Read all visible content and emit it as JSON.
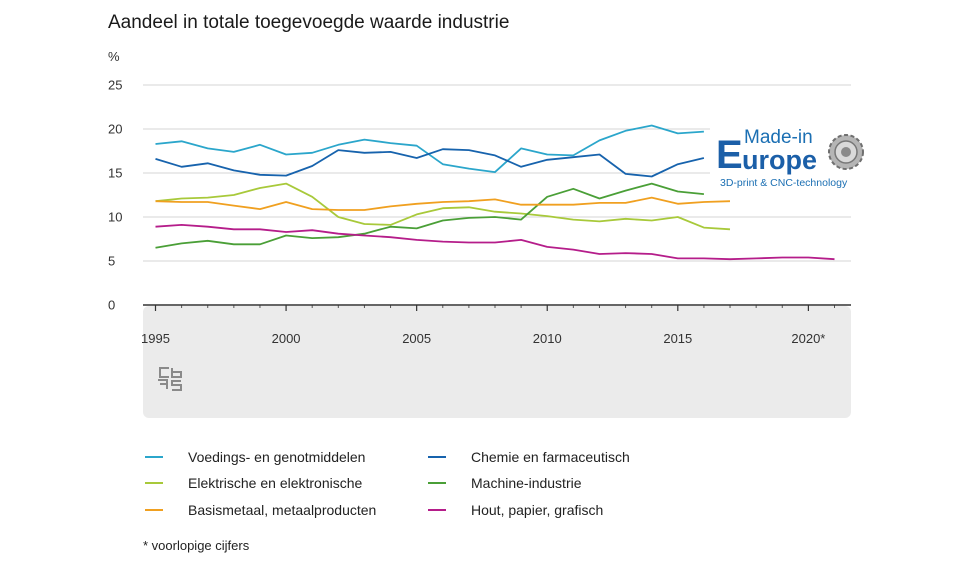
{
  "chart_data": {
    "type": "line",
    "title": "Aandeel in totale toegevoegde waarde industrie",
    "ylabel": "%",
    "ylim": [
      0,
      25
    ],
    "yticks": [
      "0",
      "5",
      "10",
      "15",
      "20",
      "25"
    ],
    "xlim": [
      1995,
      2021
    ],
    "xticks": [
      {
        "value": 1995,
        "label": "1995"
      },
      {
        "value": 2000,
        "label": "2000"
      },
      {
        "value": 2005,
        "label": "2005"
      },
      {
        "value": 2010,
        "label": "2010"
      },
      {
        "value": 2015,
        "label": "2015"
      },
      {
        "value": 2020,
        "label": "2020*"
      }
    ],
    "grid": true,
    "legend_position": "bottom",
    "series": [
      {
        "name": "Voedings- en genotmiddelen",
        "color": "#2ba6cb",
        "x": [
          1995,
          1996,
          1997,
          1998,
          1999,
          2000,
          2001,
          2002,
          2003,
          2004,
          2005,
          2006,
          2007,
          2008,
          2009,
          2010,
          2011,
          2012,
          2013,
          2014,
          2015,
          2016
        ],
        "values": [
          18.3,
          18.6,
          17.8,
          17.4,
          18.2,
          17.1,
          17.3,
          18.2,
          18.8,
          18.4,
          18.1,
          16.0,
          15.5,
          15.1,
          17.8,
          17.1,
          17.0,
          18.7,
          19.8,
          20.4,
          19.5,
          19.7
        ]
      },
      {
        "name": "Chemie en farmaceutisch",
        "color": "#1763ad",
        "x": [
          1995,
          1996,
          1997,
          1998,
          1999,
          2000,
          2001,
          2002,
          2003,
          2004,
          2005,
          2006,
          2007,
          2008,
          2009,
          2010,
          2011,
          2012,
          2013,
          2014,
          2015,
          2016
        ],
        "values": [
          16.6,
          15.7,
          16.1,
          15.3,
          14.8,
          14.7,
          15.8,
          17.6,
          17.3,
          17.4,
          16.7,
          17.7,
          17.6,
          17.0,
          15.7,
          16.5,
          16.8,
          17.1,
          14.9,
          14.6,
          16.0,
          16.7
        ]
      },
      {
        "name": "Elektrische en elektronische",
        "color": "#a8c93a",
        "x": [
          1995,
          1996,
          1997,
          1998,
          1999,
          2000,
          2001,
          2002,
          2003,
          2004,
          2005,
          2006,
          2007,
          2008,
          2009,
          2010,
          2011,
          2012,
          2013,
          2014,
          2015,
          2016,
          2017
        ],
        "values": [
          11.8,
          12.1,
          12.2,
          12.5,
          13.3,
          13.8,
          12.3,
          10.0,
          9.2,
          9.1,
          10.3,
          11.0,
          11.1,
          10.6,
          10.4,
          10.1,
          9.7,
          9.5,
          9.8,
          9.6,
          10.0,
          8.8,
          8.6
        ]
      },
      {
        "name": "Machine-industrie",
        "color": "#4a9f37",
        "x": [
          1995,
          1996,
          1997,
          1998,
          1999,
          2000,
          2001,
          2002,
          2003,
          2004,
          2005,
          2006,
          2007,
          2008,
          2009,
          2010,
          2011,
          2012,
          2013,
          2014,
          2015,
          2016
        ],
        "values": [
          6.5,
          7.0,
          7.3,
          6.9,
          6.9,
          7.9,
          7.6,
          7.7,
          8.1,
          8.9,
          8.7,
          9.6,
          9.9,
          10.0,
          9.7,
          12.3,
          13.2,
          12.1,
          13.0,
          13.8,
          12.9,
          12.6
        ]
      },
      {
        "name": "Basismetaal, metaalproducten",
        "color": "#f0a020",
        "x": [
          1995,
          1996,
          1997,
          1998,
          1999,
          2000,
          2001,
          2002,
          2003,
          2004,
          2005,
          2006,
          2007,
          2008,
          2009,
          2010,
          2011,
          2012,
          2013,
          2014,
          2015,
          2016,
          2017
        ],
        "values": [
          11.8,
          11.7,
          11.7,
          11.3,
          10.9,
          11.7,
          10.9,
          10.8,
          10.8,
          11.2,
          11.5,
          11.7,
          11.8,
          12.0,
          11.4,
          11.4,
          11.4,
          11.6,
          11.6,
          12.2,
          11.5,
          11.7,
          11.8
        ]
      },
      {
        "name": "Hout, papier, grafisch",
        "color": "#b51d8a",
        "x": [
          1995,
          1996,
          1997,
          1998,
          1999,
          2000,
          2001,
          2002,
          2003,
          2004,
          2005,
          2006,
          2007,
          2008,
          2009,
          2010,
          2011,
          2012,
          2013,
          2014,
          2015,
          2016,
          2017,
          2018,
          2019,
          2020,
          2021
        ],
        "values": [
          8.9,
          9.1,
          8.9,
          8.6,
          8.6,
          8.3,
          8.5,
          8.1,
          7.9,
          7.7,
          7.4,
          7.2,
          7.1,
          7.1,
          7.4,
          6.6,
          6.3,
          5.8,
          5.9,
          5.8,
          5.3,
          5.3,
          5.2,
          5.3,
          5.4,
          5.4,
          5.2
        ]
      }
    ],
    "footnote": "* voorlopige cijfers"
  },
  "logo": {
    "made_in": "Made-in",
    "big_e": "E",
    "urope": "urope",
    "tagline": "3D-print & CNC-technology",
    "icon": "gear-icon"
  },
  "source_icon": "cbs-logo-icon"
}
